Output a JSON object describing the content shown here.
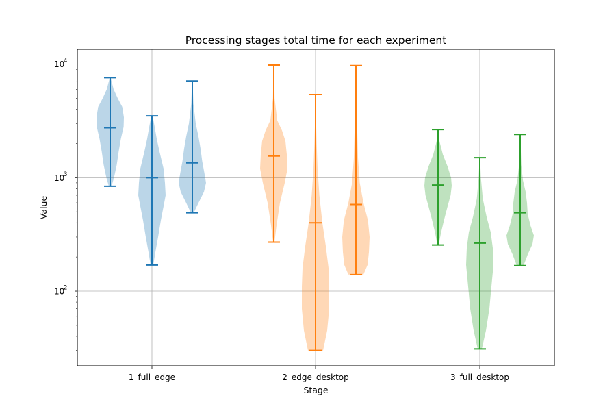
{
  "chart_data": {
    "type": "violin",
    "title": "Processing stages total time for each experiment",
    "xlabel": "Stage",
    "ylabel": "Value",
    "yscale": "log",
    "ylim": [
      22,
      13500
    ],
    "yticks": [
      {
        "value": 100,
        "base": "10",
        "exp": "2"
      },
      {
        "value": 1000,
        "base": "10",
        "exp": "3"
      },
      {
        "value": 10000,
        "base": "10",
        "exp": "4"
      }
    ],
    "grid": true,
    "categories": [
      "1_full_edge",
      "2_edge_desktop",
      "3_full_desktop"
    ],
    "groups": [
      {
        "category": "1_full_edge",
        "color": "#1f77b4",
        "violins": [
          {
            "min": 840,
            "median": 2750,
            "max": 7600,
            "profile": [
              [
                840,
                0.1
              ],
              [
                1000,
                0.28
              ],
              [
                1300,
                0.48
              ],
              [
                1700,
                0.62
              ],
              [
                2200,
                0.78
              ],
              [
                2800,
                0.98
              ],
              [
                3400,
                1.0
              ],
              [
                4200,
                0.88
              ],
              [
                5000,
                0.55
              ],
              [
                6000,
                0.25
              ],
              [
                7600,
                0.03
              ]
            ]
          },
          {
            "min": 170,
            "median": 1000,
            "max": 3500,
            "profile": [
              [
                170,
                0.1
              ],
              [
                220,
                0.25
              ],
              [
                300,
                0.45
              ],
              [
                420,
                0.65
              ],
              [
                560,
                0.85
              ],
              [
                700,
                1.0
              ],
              [
                900,
                0.95
              ],
              [
                1200,
                0.85
              ],
              [
                1700,
                0.55
              ],
              [
                2200,
                0.35
              ],
              [
                2800,
                0.2
              ],
              [
                3500,
                0.05
              ]
            ]
          },
          {
            "min": 490,
            "median": 1350,
            "max": 7100,
            "profile": [
              [
                490,
                0.1
              ],
              [
                600,
                0.45
              ],
              [
                750,
                0.85
              ],
              [
                900,
                1.0
              ],
              [
                1100,
                0.88
              ],
              [
                1400,
                0.72
              ],
              [
                1800,
                0.6
              ],
              [
                2300,
                0.45
              ],
              [
                3000,
                0.25
              ],
              [
                4500,
                0.08
              ],
              [
                7100,
                0.02
              ]
            ]
          }
        ]
      },
      {
        "category": "2_edge_desktop",
        "color": "#ff7f0e",
        "violins": [
          {
            "min": 270,
            "median": 1550,
            "max": 9800,
            "profile": [
              [
                270,
                0.05
              ],
              [
                380,
                0.2
              ],
              [
                600,
                0.45
              ],
              [
                900,
                0.8
              ],
              [
                1200,
                1.0
              ],
              [
                1600,
                0.95
              ],
              [
                2100,
                0.85
              ],
              [
                2600,
                0.6
              ],
              [
                3200,
                0.25
              ],
              [
                5000,
                0.06
              ],
              [
                9800,
                0.02
              ]
            ]
          },
          {
            "min": 30,
            "median": 400,
            "max": 5400,
            "profile": [
              [
                30,
                0.55
              ],
              [
                45,
                0.85
              ],
              [
                70,
                1.0
              ],
              [
                110,
                1.0
              ],
              [
                160,
                0.95
              ],
              [
                250,
                0.75
              ],
              [
                400,
                0.5
              ],
              [
                700,
                0.28
              ],
              [
                1200,
                0.15
              ],
              [
                2000,
                0.08
              ],
              [
                3500,
                0.03
              ],
              [
                5400,
                0.01
              ]
            ]
          },
          {
            "min": 140,
            "median": 580,
            "max": 9700,
            "profile": [
              [
                140,
                0.55
              ],
              [
                170,
                0.85
              ],
              [
                220,
                0.95
              ],
              [
                300,
                1.0
              ],
              [
                420,
                0.88
              ],
              [
                600,
                0.55
              ],
              [
                900,
                0.28
              ],
              [
                1500,
                0.15
              ],
              [
                2500,
                0.1
              ],
              [
                5000,
                0.04
              ],
              [
                9700,
                0.01
              ]
            ]
          }
        ]
      },
      {
        "category": "3_full_desktop",
        "color": "#2ca02c",
        "violins": [
          {
            "min": 255,
            "median": 860,
            "max": 2650,
            "profile": [
              [
                255,
                0.05
              ],
              [
                320,
                0.2
              ],
              [
                430,
                0.45
              ],
              [
                560,
                0.7
              ],
              [
                700,
                0.92
              ],
              [
                850,
                1.0
              ],
              [
                1000,
                0.95
              ],
              [
                1250,
                0.7
              ],
              [
                1600,
                0.35
              ],
              [
                2100,
                0.1
              ],
              [
                2650,
                0.02
              ]
            ]
          },
          {
            "min": 31,
            "median": 265,
            "max": 1500,
            "profile": [
              [
                31,
                0.15
              ],
              [
                45,
                0.45
              ],
              [
                70,
                0.7
              ],
              [
                110,
                0.85
              ],
              [
                170,
                1.0
              ],
              [
                240,
                0.95
              ],
              [
                330,
                0.8
              ],
              [
                450,
                0.5
              ],
              [
                650,
                0.22
              ],
              [
                1000,
                0.08
              ],
              [
                1500,
                0.02
              ]
            ]
          },
          {
            "min": 168,
            "median": 490,
            "max": 2400,
            "profile": [
              [
                168,
                0.25
              ],
              [
                210,
                0.55
              ],
              [
                260,
                0.9
              ],
              [
                310,
                1.0
              ],
              [
                380,
                0.75
              ],
              [
                480,
                0.55
              ],
              [
                600,
                0.5
              ],
              [
                750,
                0.4
              ],
              [
                950,
                0.2
              ],
              [
                1300,
                0.08
              ],
              [
                2400,
                0.01
              ]
            ]
          }
        ]
      }
    ]
  }
}
